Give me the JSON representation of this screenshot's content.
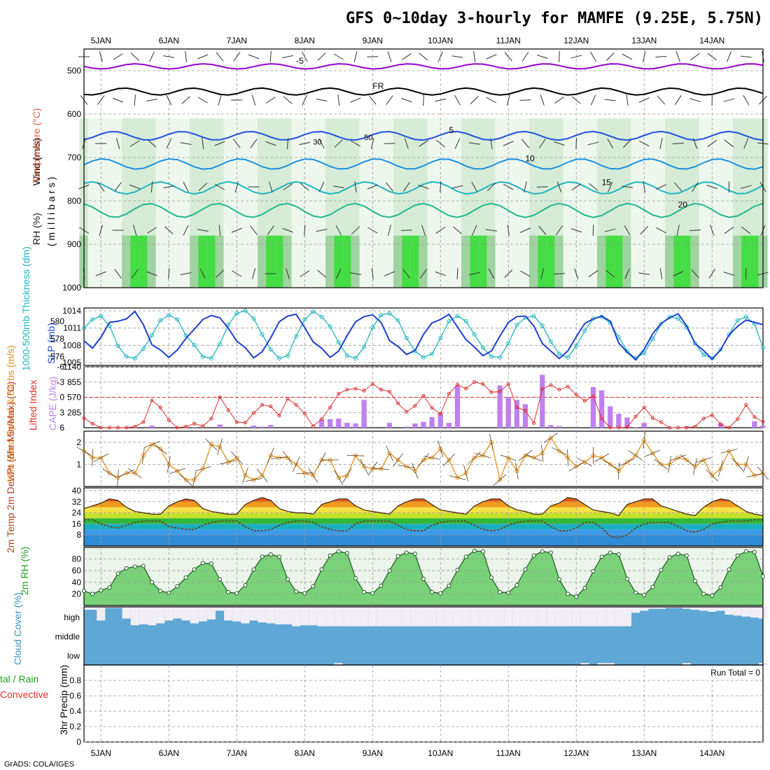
{
  "header": {
    "title": "GFS 0~10day 3-hourly for MAMFE (9.25E, 5.75N)"
  },
  "footer": {
    "credit": "GrADS: COLA/IGES"
  },
  "chart_data": [
    {
      "type": "contour",
      "name": "upper-air cross-section",
      "days": [
        "5JAN",
        "6JAN",
        "7JAN",
        "8JAN",
        "9JAN",
        "10JAN",
        "11JAN",
        "12JAN",
        "13JAN",
        "14JAN"
      ],
      "ylabel": "( m i l l i b a r s )",
      "side_labels": {
        "wind": "Wind (m/s)",
        "temperature": "Temperature (°C)",
        "rh": "RH (%)"
      },
      "levels_mb": [
        500,
        600,
        700,
        800,
        900,
        1000
      ],
      "ylim": [
        450,
        1000
      ],
      "isotherms": [
        {
          "label": "-5",
          "level_mb": 490,
          "color": "#9900cc"
        },
        {
          "label": "FR",
          "level_mb": 548,
          "color": "#000000"
        },
        {
          "label": "5",
          "level_mb": 650,
          "color": "#1f4fe0"
        },
        {
          "label": "10",
          "level_mb": 715,
          "color": "#1a90e0"
        },
        {
          "label": "15",
          "level_mb": 770,
          "color": "#20b5c0"
        },
        {
          "label": "20",
          "level_mb": 822,
          "color": "#20b890"
        }
      ],
      "rh_labels": [
        "30",
        "50"
      ]
    },
    {
      "type": "line",
      "name": "thickness and SLP",
      "x": [
        0,
        3,
        6,
        9,
        12,
        15,
        18,
        21,
        24,
        27,
        30,
        33,
        36,
        39,
        42,
        45,
        48,
        51,
        54,
        57,
        60,
        63,
        66,
        69,
        72,
        75,
        78,
        81,
        84,
        87,
        90,
        93,
        96,
        99,
        102,
        105,
        108,
        111,
        114,
        117,
        120,
        123,
        126,
        129,
        132,
        135,
        138,
        141,
        144,
        147,
        150,
        153,
        156,
        159,
        162,
        165,
        168,
        171,
        174,
        177,
        180,
        183,
        186,
        189,
        192,
        195,
        198,
        201,
        204,
        207,
        210,
        213,
        216,
        219,
        222,
        225,
        228,
        231,
        234,
        237,
        240
      ],
      "series": [
        {
          "name": "1000-500mb Thickness (dm)",
          "values": [
            579.2,
            580.2,
            580.6,
            579.5,
            577.2,
            576.0,
            575.8,
            576.9,
            578.4,
            580.1,
            580.7,
            580.2,
            578.4,
            577.3,
            576.0,
            575.8,
            577.4,
            579.6,
            580.9,
            581.2,
            580.3,
            578.5,
            576.8,
            575.8,
            576.1,
            578.3,
            580.2,
            581.1,
            580.5,
            579.4,
            577.6,
            576.1,
            575.8,
            577.1,
            579.3,
            580.7,
            580.9,
            580.1,
            578.1,
            576.6,
            575.9,
            576.3,
            578.1,
            580.0,
            580.6,
            580.0,
            578.5,
            577.0,
            576.0,
            575.9,
            577.5,
            579.6,
            580.4,
            580.6,
            579.5,
            577.7,
            576.3,
            575.9,
            577.2,
            578.9,
            580.3,
            580.5,
            579.8,
            578.2,
            576.6,
            575.8,
            576.4,
            578.0,
            579.7,
            580.5,
            580.3,
            579.3,
            577.5,
            576.2,
            575.8,
            576.8,
            578.5,
            580.1,
            580.5,
            579.7,
            577.0
          ]
        },
        {
          "name": "SLP (mb)",
          "values": [
            1008.8,
            1007.5,
            1009.4,
            1012.0,
            1012.2,
            1012.6,
            1013.9,
            1011.6,
            1008.1,
            1007.2,
            1005.9,
            1007.2,
            1009.2,
            1010.8,
            1012.5,
            1013.2,
            1012.8,
            1011.0,
            1008.7,
            1007.6,
            1005.8,
            1006.9,
            1009.3,
            1012.1,
            1013.1,
            1013.4,
            1011.1,
            1008.6,
            1007.5,
            1005.9,
            1007.0,
            1009.7,
            1012.1,
            1013.0,
            1013.3,
            1012.0,
            1008.8,
            1007.8,
            1006.4,
            1007.1,
            1009.9,
            1011.9,
            1012.5,
            1013.4,
            1011.2,
            1009.0,
            1007.7,
            1006.2,
            1007.0,
            1009.6,
            1012.0,
            1013.0,
            1013.1,
            1011.4,
            1008.3,
            1007.0,
            1005.7,
            1007.0,
            1009.5,
            1011.8,
            1012.6,
            1013.1,
            1012.2,
            1008.4,
            1006.8,
            1005.5,
            1007.3,
            1010.0,
            1011.8,
            1012.8,
            1013.5,
            1011.4,
            1008.3,
            1007.1,
            1005.6,
            1007.2,
            1009.8,
            1011.3,
            1012.4,
            1012.0,
            1011.6
          ]
        }
      ],
      "y_ticks_thickness": [
        "580",
        "578",
        "576"
      ],
      "y_ticks_slp": [
        "1014",
        "1011",
        "1008",
        "1005"
      ],
      "labels": {
        "thickness": "1000-500mb Thickness (dm)",
        "slp": "SLP (mb)"
      }
    },
    {
      "type": "bar+line",
      "name": "lifted index and CAPE",
      "lifted_index": [
        4.1,
        5.2,
        6.0,
        6.0,
        6.0,
        6.0,
        5.8,
        4.9,
        0.6,
        2.0,
        4.5,
        6.0,
        5.8,
        5.2,
        5.7,
        4.2,
        0.0,
        2.5,
        4.9,
        5.0,
        3.1,
        1.5,
        1.8,
        3.6,
        0.3,
        1.5,
        3.2,
        5.7,
        4.3,
        2.0,
        -0.7,
        -1.5,
        -1.7,
        -1.3,
        -2.6,
        -1.5,
        -1.1,
        1.2,
        2.9,
        1.7,
        -0.3,
        2.1,
        3.3,
        -0.7,
        -2.5,
        -1.7,
        -3.0,
        -2.6,
        -1.0,
        -1.1,
        -2.6,
        2.0,
        2.6,
        5.1,
        -1.6,
        -2.4,
        -1.5,
        -2.1,
        -0.5,
        0.7,
        -0.2,
        4.2,
        6.0,
        6.0,
        5.9,
        3.8,
        2.0,
        4.1,
        4.9,
        6.0,
        6.0,
        6.0,
        5.8,
        4.2,
        3.5,
        5.3,
        6.0,
        4.3,
        1.5,
        3.9,
        4.8
      ],
      "cape": [
        0,
        0,
        0,
        0,
        0,
        10,
        5,
        0,
        40,
        0,
        0,
        0,
        10,
        5,
        0,
        0,
        60,
        0,
        0,
        0,
        40,
        20,
        50,
        0,
        0,
        0,
        0,
        0,
        150,
        160,
        170,
        90,
        80,
        520,
        0,
        0,
        90,
        0,
        20,
        80,
        110,
        200,
        270,
        90,
        780,
        0,
        0,
        0,
        0,
        790,
        570,
        520,
        440,
        0,
        990,
        50,
        30,
        0,
        0,
        0,
        760,
        700,
        400,
        260,
        190,
        10,
        90,
        0,
        0,
        0,
        0,
        30,
        0,
        0,
        0,
        80,
        0,
        0,
        0,
        120,
        40
      ],
      "y_ticks_li": [
        "-6",
        "-3",
        "0",
        "3",
        "6"
      ],
      "y_ticks_cape": [
        "1140",
        "855",
        "570",
        "285"
      ],
      "labels": {
        "li": "Lifted Index",
        "cape": "CAPE (J/kg)"
      }
    },
    {
      "type": "line",
      "name": "10m wind speed",
      "values": [
        1.6,
        1.3,
        1.3,
        0.6,
        0.4,
        0.6,
        0.6,
        1.4,
        1.9,
        1.7,
        1.0,
        0.7,
        0.3,
        0.3,
        0.8,
        1.9,
        1.8,
        1.1,
        1.3,
        0.5,
        0.3,
        0.5,
        1.4,
        1.3,
        1.3,
        1.0,
        0.6,
        0.5,
        1.2,
        1.2,
        0.4,
        0.5,
        1.4,
        0.9,
        0.8,
        0.8,
        1.5,
        1.2,
        0.9,
        0.7,
        1.2,
        1.3,
        1.7,
        1.2,
        0.4,
        0.6,
        1.3,
        1.4,
        2.0,
        0.3,
        1.3,
        0.7,
        1.4,
        1.3,
        1.5,
        2.2,
        1.6,
        1.3,
        0.9,
        1.1,
        1.4,
        1.3,
        1.0,
        0.7,
        1.1,
        1.4,
        2.1,
        1.5,
        1.0,
        1.0,
        1.3,
        1.2,
        0.9,
        1.2,
        0.5,
        0.8,
        1.6,
        1.0,
        1.0,
        0.5,
        0.6
      ],
      "y_ticks": [
        "2",
        "1"
      ],
      "labels": {
        "title": "10m Wind Speed & Barbs (m/s)"
      }
    },
    {
      "type": "area",
      "name": "2m temperature",
      "temp": [
        27,
        29,
        31,
        34,
        33,
        28,
        25,
        24,
        23,
        23,
        29,
        32,
        34,
        33,
        27,
        25,
        24,
        23,
        23,
        30,
        33,
        35,
        33,
        27,
        25,
        24,
        24,
        23,
        30,
        32,
        34,
        34,
        29,
        26,
        25,
        24,
        23,
        29,
        32,
        34,
        34,
        30,
        26,
        25,
        24,
        23,
        29,
        32,
        34,
        34,
        29,
        26,
        25,
        23,
        23,
        29,
        31,
        35,
        34,
        30,
        26,
        25,
        24,
        22,
        30,
        32,
        34,
        34,
        29,
        27,
        25,
        23,
        22,
        28,
        32,
        34,
        33,
        29,
        25,
        23,
        22
      ],
      "dewpt": [
        19,
        19,
        16,
        14,
        13,
        15,
        17,
        18,
        18,
        18,
        14,
        13,
        12,
        12,
        15,
        17,
        18,
        18,
        18,
        14,
        11,
        11,
        12,
        15,
        17,
        18,
        18,
        17,
        14,
        12,
        11,
        11,
        16,
        18,
        18,
        18,
        18,
        15,
        12,
        11,
        11,
        15,
        17,
        18,
        18,
        18,
        15,
        12,
        11,
        12,
        15,
        17,
        18,
        18,
        18,
        14,
        11,
        11,
        13,
        17,
        17,
        13,
        7,
        6,
        8,
        13,
        16,
        17,
        17,
        17,
        14,
        11,
        10,
        12,
        16,
        17,
        18,
        18,
        18,
        19,
        19
      ],
      "y_ticks": [
        "40",
        "32",
        "24",
        "16",
        "8"
      ],
      "labels": {
        "title": "2m Temp 2m DewPt (6hr Min/Max) (°C)"
      }
    },
    {
      "type": "area",
      "name": "2m relative humidity",
      "values": [
        25,
        20,
        26,
        31,
        55,
        64,
        67,
        68,
        40,
        25,
        22,
        33,
        48,
        62,
        73,
        72,
        45,
        23,
        21,
        35,
        62,
        84,
        88,
        84,
        45,
        24,
        21,
        33,
        62,
        86,
        93,
        90,
        47,
        23,
        21,
        34,
        60,
        85,
        91,
        89,
        46,
        23,
        21,
        34,
        61,
        84,
        94,
        93,
        48,
        23,
        22,
        35,
        62,
        86,
        93,
        91,
        45,
        20,
        15,
        30,
        59,
        84,
        91,
        88,
        46,
        22,
        18,
        32,
        61,
        83,
        89,
        86,
        42,
        20,
        17,
        31,
        62,
        86,
        93,
        92,
        50
      ],
      "y_ticks": [
        "80",
        "60",
        "40",
        "20"
      ],
      "labels": {
        "title": "2m RH (%)"
      }
    },
    {
      "type": "bar",
      "name": "cloud cover",
      "high": [
        85,
        85,
        30,
        95,
        95,
        40,
        5,
        10,
        5,
        15,
        30,
        40,
        30,
        15,
        25,
        35,
        80,
        30,
        25,
        15,
        30,
        20,
        15,
        10,
        10,
        0,
        5,
        5,
        0,
        0,
        0,
        0,
        0,
        0,
        0,
        0,
        0,
        0,
        0,
        0,
        0,
        0,
        0,
        0,
        0,
        0,
        0,
        0,
        0,
        0,
        0,
        0,
        0,
        0,
        0,
        0,
        0,
        0,
        0,
        0,
        0,
        0,
        0,
        0,
        0,
        70,
        80,
        90,
        90,
        95,
        95,
        90,
        85,
        80,
        75,
        80,
        60,
        55,
        50,
        45,
        40
      ],
      "low": [
        0,
        0,
        0,
        0,
        0,
        0,
        0,
        0,
        0,
        0,
        0,
        0,
        0,
        0,
        0,
        0,
        0,
        0,
        0,
        0,
        0,
        0,
        0,
        0,
        0,
        0,
        0,
        0,
        0,
        0,
        0,
        0,
        0,
        0,
        0,
        0,
        0,
        0,
        0,
        0,
        0,
        0,
        0,
        0,
        0,
        0,
        0,
        0,
        0,
        0,
        0,
        0,
        0,
        0,
        0,
        0,
        0,
        0,
        0,
        0,
        0,
        0,
        0,
        0,
        0,
        0,
        0,
        0,
        0,
        0,
        0,
        0,
        0,
        0,
        0,
        0,
        0,
        0,
        0,
        0,
        0
      ],
      "low_patches": [
        {
          "x": 30,
          "v": 15
        },
        {
          "x": 59,
          "v": 25
        },
        {
          "x": 61,
          "v": 25
        },
        {
          "x": 62,
          "v": 25
        },
        {
          "x": 71,
          "v": 30
        },
        {
          "x": 80,
          "v": 20
        }
      ],
      "rows": [
        "high",
        "middle",
        "low"
      ],
      "labels": {
        "title": "Cloud Cover (%)"
      }
    },
    {
      "type": "bar",
      "name": "3hr precipitation",
      "values": [
        0,
        0,
        0,
        0,
        0,
        0,
        0,
        0,
        0,
        0,
        0,
        0,
        0,
        0,
        0,
        0,
        0,
        0,
        0,
        0,
        0,
        0,
        0,
        0,
        0,
        0,
        0,
        0,
        0,
        0,
        0,
        0,
        0,
        0,
        0,
        0,
        0,
        0,
        0,
        0,
        0,
        0,
        0,
        0,
        0,
        0,
        0,
        0,
        0,
        0,
        0,
        0,
        0,
        0,
        0,
        0,
        0,
        0,
        0,
        0,
        0,
        0,
        0,
        0,
        0,
        0,
        0,
        0,
        0,
        0,
        0,
        0,
        0,
        0,
        0,
        0,
        0,
        0,
        0,
        0,
        0
      ],
      "y_ticks": [
        "0.8",
        "0.6",
        "0.4",
        "0.2",
        "0"
      ],
      "ylim": [
        0,
        1
      ],
      "run_total": "Run Total = 0",
      "labels": {
        "title": "3hr Precip (mm)",
        "total_rain": "tal / Rain",
        "convective": "Convective"
      }
    }
  ]
}
